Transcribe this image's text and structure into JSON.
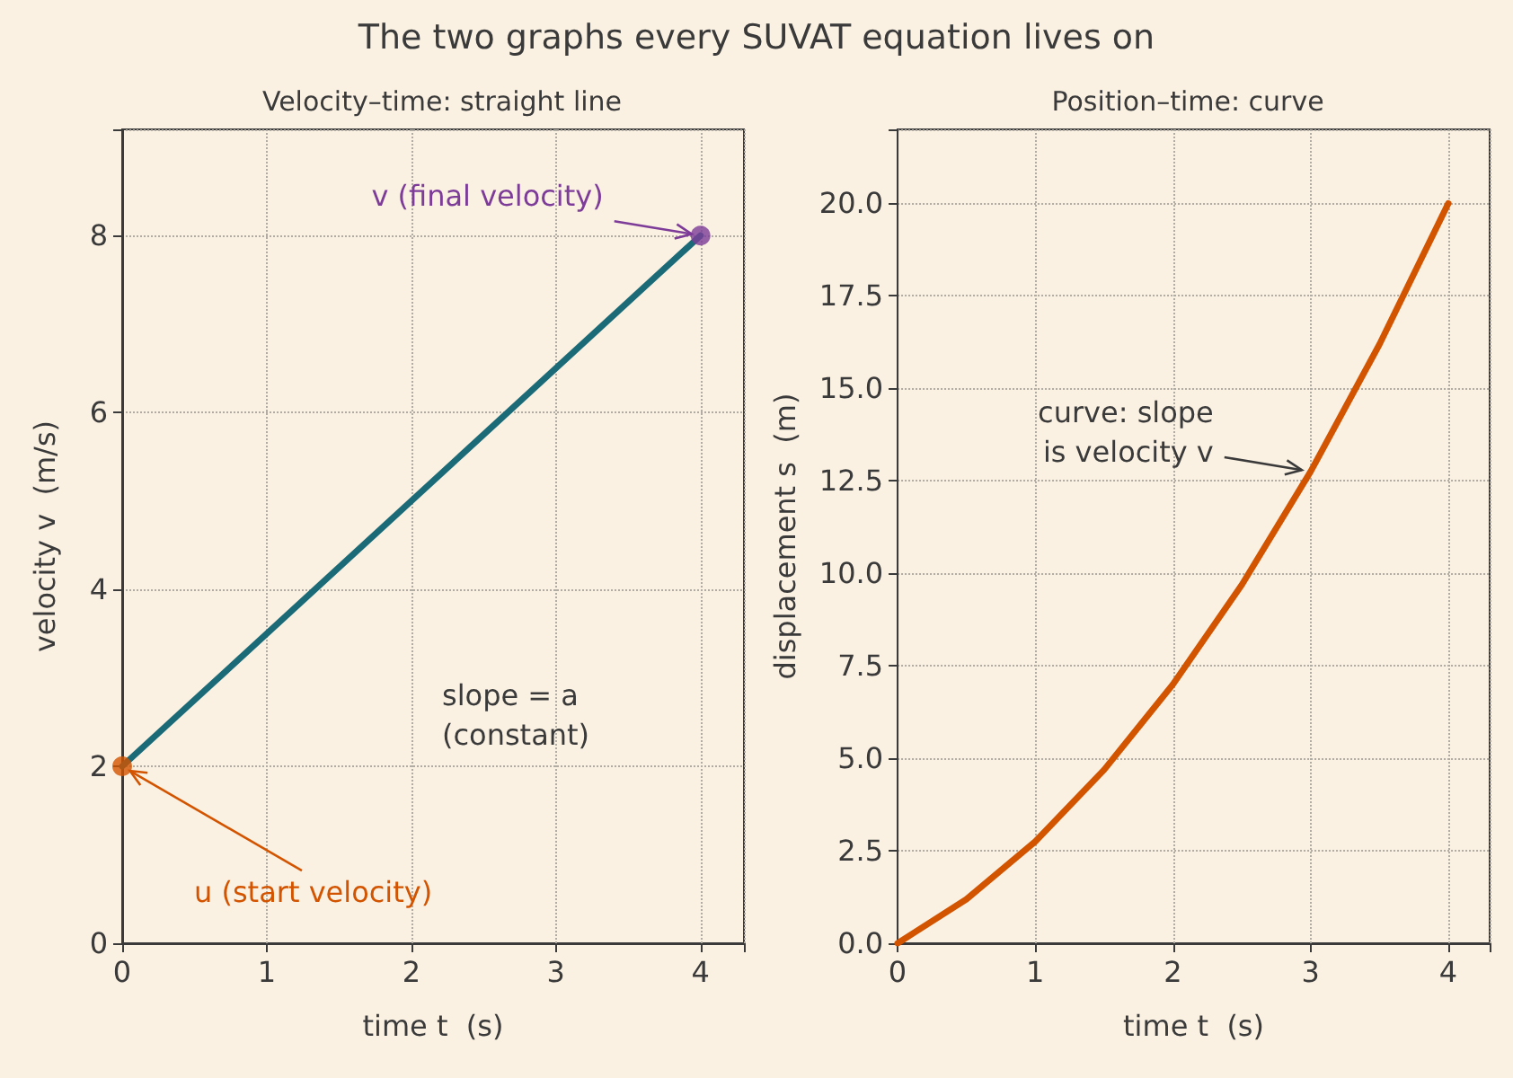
{
  "chart_data": [
    {
      "type": "line",
      "title": "Velocity–time: straight line",
      "xlabel": "time t  (s)",
      "ylabel": "velocity v  (m/s)",
      "xlim": [
        0,
        4.3
      ],
      "xticks": [
        0,
        1,
        2,
        3,
        4
      ],
      "ylim": [
        0,
        9.2
      ],
      "yticks": [
        0,
        2,
        4,
        6,
        8
      ],
      "grid": true,
      "series": [
        {
          "color": "#1b6a78",
          "x": [
            0,
            4
          ],
          "values": [
            2,
            8
          ],
          "marker": "none",
          "line_style": "solid"
        },
        {
          "type": "scatter",
          "color": "#d35400",
          "x": [
            0
          ],
          "values": [
            2
          ],
          "marker": "circle"
        },
        {
          "type": "scatter",
          "color": "#7d3c98",
          "x": [
            4
          ],
          "values": [
            8
          ],
          "marker": "circle"
        }
      ],
      "annotations": [
        "The two graphs every SUVAT equation lives on",
        {
          "text": "v (final velocity)",
          "x": 4,
          "y": 8
        },
        {
          "text": "u (start velocity)",
          "x": 0,
          "y": 2
        },
        "slope = a\n(constant)"
      ]
    },
    {
      "type": "line",
      "title": "Position–time: curve",
      "xlabel": "time t  (s)",
      "ylabel": "displacement s  (m)",
      "xlim": [
        0,
        4.3
      ],
      "xticks": [
        0,
        1,
        2,
        3,
        4
      ],
      "ylim": [
        0,
        22
      ],
      "yticks": [
        {
          "value": 0,
          "label": "0.0"
        },
        {
          "value": 2.5,
          "label": "2.5"
        },
        {
          "value": 5,
          "label": "5.0"
        },
        {
          "value": 7.5,
          "label": "7.5"
        },
        {
          "value": 10,
          "label": "10.0"
        },
        {
          "value": 12.5,
          "label": "12.5"
        },
        {
          "value": 15,
          "label": "15.0"
        },
        {
          "value": 17.5,
          "label": "17.5"
        },
        {
          "value": 20,
          "label": "20.0"
        }
      ],
      "grid": true,
      "series": [
        {
          "color": "#d35400",
          "x": [
            0,
            0.5,
            1,
            1.5,
            2,
            2.5,
            3,
            3.5,
            4
          ],
          "values": [
            0,
            1.19,
            2.75,
            4.69,
            7,
            9.69,
            12.75,
            16.19,
            20
          ],
          "marker": "none",
          "line_style": "solid"
        }
      ],
      "annotations": [
        {
          "text": "curve: slope\nis velocity v",
          "x": 3,
          "y": 12.75
        }
      ]
    }
  ]
}
